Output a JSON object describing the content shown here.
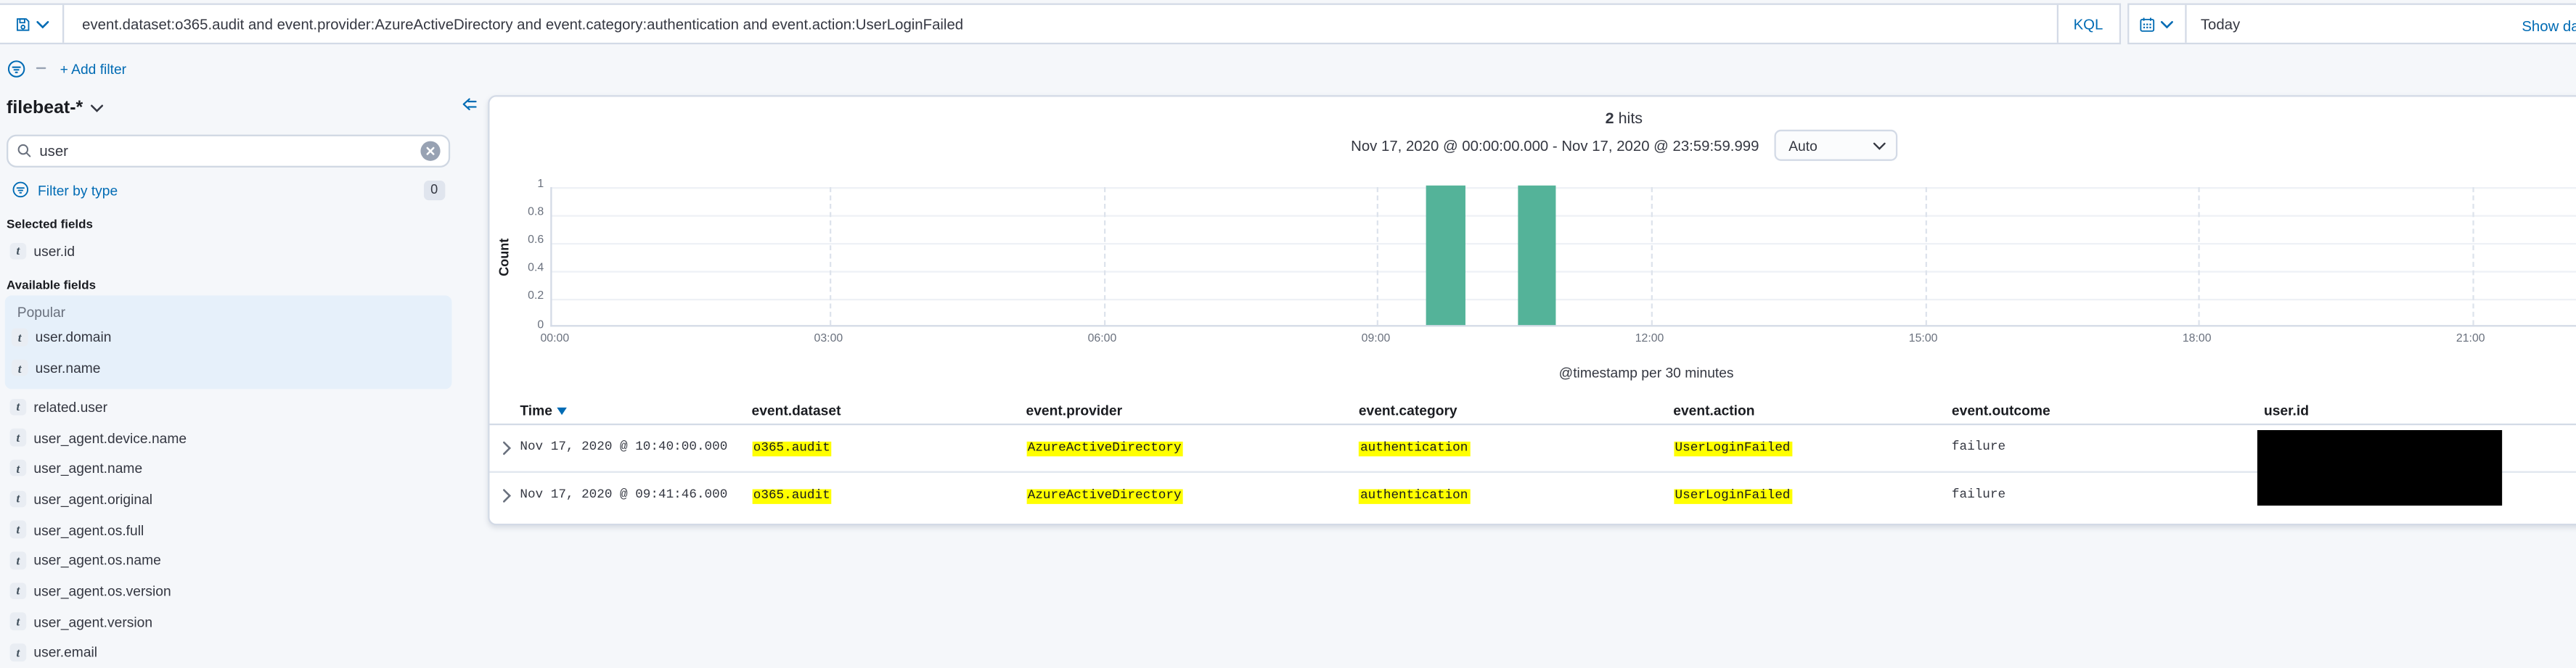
{
  "query_bar": {
    "query": "event.dataset:o365.audit and event.provider:AzureActiveDirectory and event.category:authentication and event.action:UserLoginFailed",
    "language": "KQL",
    "date_value": "Today",
    "show_dates_label": "Show dates",
    "add_filter_label": "+ Add filter"
  },
  "sidebar": {
    "index_pattern": "filebeat-*",
    "field_search_value": "user",
    "filter_by_type": {
      "label": "Filter by type",
      "count": "0"
    },
    "selected_fields_label": "Selected fields",
    "selected_fields": [
      {
        "type": "t",
        "name": "user.id"
      }
    ],
    "available_fields_label": "Available fields",
    "popular_label": "Popular",
    "popular_fields": [
      {
        "type": "t",
        "name": "user.domain"
      },
      {
        "type": "t",
        "name": "user.name"
      }
    ],
    "available_fields": [
      {
        "type": "t",
        "name": "related.user"
      },
      {
        "type": "t",
        "name": "user_agent.device.name"
      },
      {
        "type": "t",
        "name": "user_agent.name"
      },
      {
        "type": "t",
        "name": "user_agent.original"
      },
      {
        "type": "t",
        "name": "user_agent.os.full"
      },
      {
        "type": "t",
        "name": "user_agent.os.name"
      },
      {
        "type": "t",
        "name": "user_agent.os.version"
      },
      {
        "type": "t",
        "name": "user_agent.version"
      },
      {
        "type": "t",
        "name": "user.email"
      }
    ]
  },
  "results_header": {
    "hits_count": "2",
    "hits_label": "hits",
    "time_range": "Nov 17, 2020 @ 00:00:00.000 - Nov 17, 2020 @ 23:59:59.999",
    "interval_value": "Auto"
  },
  "chart_data": {
    "type": "bar",
    "title": "",
    "ylabel": "Count",
    "xlabel": "@timestamp per 30 minutes",
    "x_ticks": [
      "00:00",
      "03:00",
      "06:00",
      "09:00",
      "12:00",
      "15:00",
      "18:00",
      "21:00"
    ],
    "y_ticks": [
      0,
      0.2,
      0.4,
      0.6,
      0.8,
      1
    ],
    "ylim": [
      0,
      1
    ],
    "x_range_hours": [
      0,
      24
    ],
    "bucket_minutes": 30,
    "bars": [
      {
        "time": "09:30",
        "hour": 9.5,
        "count": 1
      },
      {
        "time": "10:30",
        "hour": 10.5,
        "count": 1
      }
    ],
    "bar_color": "#54B399",
    "grid": true,
    "legend": false
  },
  "table": {
    "columns": [
      "Time",
      "event.dataset",
      "event.provider",
      "event.category",
      "event.action",
      "event.outcome",
      "user.id"
    ],
    "sorted_column": "Time",
    "highlighted_fields": [
      "event_dataset",
      "event_provider",
      "event_category",
      "event_action"
    ],
    "rows": [
      {
        "time": "Nov 17, 2020 @ 10:40:00.000",
        "event_dataset": "o365.audit",
        "event_provider": "AzureActiveDirectory",
        "event_category": "authentication",
        "event_action": "UserLoginFailed",
        "event_outcome": "failure",
        "user_id_redacted": true
      },
      {
        "time": "Nov 17, 2020 @ 09:41:46.000",
        "event_dataset": "o365.audit",
        "event_provider": "AzureActiveDirectory",
        "event_category": "authentication",
        "event_action": "UserLoginFailed",
        "event_outcome": "failure",
        "user_id_redacted": true
      }
    ]
  },
  "colors": {
    "link_blue": "#006BB4",
    "text": "#343741",
    "muted": "#69707D",
    "border": "#D3DAE6",
    "page_bg": "#F5F7FA",
    "panel_bg": "#FFFFFF",
    "popular_bg": "#E6F0FA",
    "highlight": "#FFFF00",
    "bar_green": "#54B399",
    "redaction": "#000000"
  }
}
